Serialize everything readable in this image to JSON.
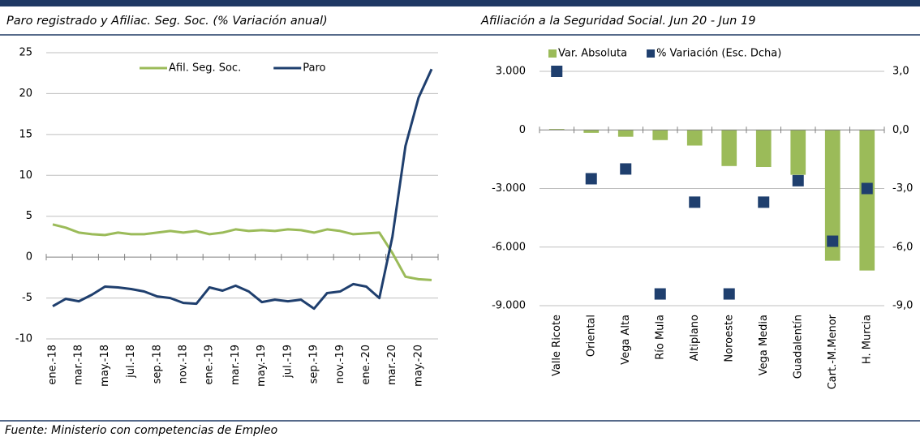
{
  "chart_data": [
    {
      "type": "line",
      "title": "Paro registrado y Afiliac. Seg. Soc. (% Variación anual)",
      "categories": [
        "ene.-18",
        null,
        "mar.-18",
        null,
        "may.-18",
        null,
        "jul.-18",
        null,
        "sep.-18",
        null,
        "nov.-18",
        null,
        "ene.-19",
        null,
        "mar.-19",
        null,
        "may.-19",
        null,
        "jul.-19",
        null,
        "sep.-19",
        null,
        "nov.-19",
        null,
        "ene.-20",
        null,
        "mar.-20",
        null,
        "may.-20",
        null
      ],
      "series": [
        {
          "name": "Afil. Seg. Soc.",
          "color": "#9bbb59",
          "values": [
            4.0,
            3.6,
            3.0,
            2.8,
            2.7,
            3.0,
            2.8,
            2.8,
            3.0,
            3.2,
            3.0,
            3.2,
            2.8,
            3.0,
            3.4,
            3.2,
            3.3,
            3.2,
            3.4,
            3.3,
            3.0,
            3.4,
            3.2,
            2.8,
            2.9,
            3.0,
            0.5,
            -2.4,
            -2.7,
            -2.8
          ]
        },
        {
          "name": "Paro",
          "color": "#1f3f6e",
          "values": [
            -6.0,
            -5.1,
            -5.4,
            -4.6,
            -3.6,
            -3.7,
            -3.9,
            -4.2,
            -4.8,
            -5.0,
            -5.6,
            -5.7,
            -3.7,
            -4.1,
            -3.5,
            -4.2,
            -5.5,
            -5.2,
            -5.4,
            -5.2,
            -6.3,
            -4.4,
            -4.2,
            -3.3,
            -3.6,
            -5.0,
            2.5,
            13.6,
            19.5,
            23.0
          ]
        }
      ],
      "ylim": [
        -10,
        25
      ],
      "yticks": [
        -10,
        -5,
        0,
        5,
        10,
        15,
        20,
        25
      ],
      "grid": true,
      "legend": "top"
    },
    {
      "type": "bar",
      "title": "Afiliación a la Seguridad Social. Jun 20 - Jun 19",
      "categories": [
        "Valle Ricote",
        "Oriental",
        "Vega Alta",
        "Río Mula",
        "Altiplano",
        "Noroeste",
        "Vega Media",
        "Guadalentín",
        "Cart.-M.Menor",
        "H. Murcia"
      ],
      "series": [
        {
          "name": "Var. Absoluta",
          "color": "#9bbb59",
          "type": "bar",
          "values": [
            50,
            -150,
            -350,
            -520,
            -800,
            -1850,
            -1900,
            -2300,
            -6700,
            -7200
          ]
        },
        {
          "name": "% Variación (Esc. Dcha)",
          "color": "#1f3f6e",
          "type": "scatter",
          "axis": "y2",
          "values": [
            3.0,
            -2.5,
            -2.0,
            -8.4,
            -3.7,
            -8.4,
            -3.7,
            -2.6,
            -5.7,
            -3.0
          ]
        }
      ],
      "ylim": [
        -9000,
        3000
      ],
      "yticks": [
        {
          "value": -9000,
          "label": "-9.000"
        },
        {
          "value": -6000,
          "label": "-6.000"
        },
        {
          "value": -3000,
          "label": "-3.000"
        },
        0,
        {
          "value": 3000,
          "label": "3.000"
        }
      ],
      "y2lim": [
        -9,
        3
      ],
      "y2ticks": [
        {
          "value": -9,
          "label": "-9,0"
        },
        {
          "value": -6,
          "label": "-6,0"
        },
        {
          "value": -3,
          "label": "-3,0"
        },
        {
          "value": 0,
          "label": "0,0"
        },
        {
          "value": 3,
          "label": "3,0"
        }
      ],
      "grid": true,
      "legend": "top"
    }
  ],
  "footer": "Fuente: Ministerio con competencias de Empleo"
}
